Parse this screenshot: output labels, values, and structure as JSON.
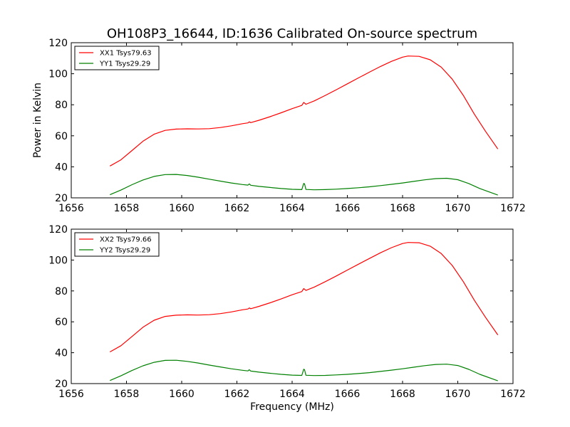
{
  "title": "OH108P3_16644, ID:1636 Calibrated On-source spectrum",
  "colors": {
    "xx": "#ff0000",
    "yy": "#008000",
    "axes": "#000000"
  },
  "chart_data": [
    {
      "type": "line",
      "ylabel": "Power in Kelvin",
      "xlabel": "",
      "xlim": [
        1656,
        1672
      ],
      "ylim": [
        20,
        120
      ],
      "xticks": [
        1656,
        1658,
        1660,
        1662,
        1664,
        1666,
        1668,
        1670,
        1672
      ],
      "yticks": [
        20,
        40,
        60,
        80,
        100,
        120
      ],
      "legend": "top-left",
      "grid": false,
      "series": [
        {
          "name": "XX1 Tsys79.63",
          "color": "#ff0000",
          "x": [
            1657.4,
            1657.8,
            1658.2,
            1658.6,
            1659.0,
            1659.4,
            1659.8,
            1660.2,
            1660.6,
            1661.0,
            1661.4,
            1661.8,
            1662.2,
            1662.4,
            1662.45,
            1662.5,
            1662.8,
            1663.2,
            1663.6,
            1664.0,
            1664.35,
            1664.42,
            1664.5,
            1664.8,
            1665.2,
            1665.6,
            1666.0,
            1666.4,
            1666.8,
            1667.2,
            1667.6,
            1668.0,
            1668.2,
            1668.6,
            1669.0,
            1669.4,
            1669.8,
            1670.2,
            1670.6,
            1671.0,
            1671.45
          ],
          "y": [
            40.5,
            44.5,
            50.5,
            56.5,
            61.0,
            63.5,
            64.3,
            64.5,
            64.4,
            64.6,
            65.3,
            66.4,
            67.8,
            68.3,
            69.0,
            68.5,
            70.0,
            72.3,
            74.8,
            77.5,
            79.6,
            81.5,
            80.3,
            82.5,
            86.0,
            89.7,
            93.5,
            97.3,
            101.0,
            104.7,
            108.0,
            110.7,
            111.4,
            111.2,
            109.0,
            104.2,
            96.5,
            86.0,
            74.0,
            63.0,
            51.5
          ]
        },
        {
          "name": "YY1 Tsys29.29",
          "color": "#008000",
          "x": [
            1657.4,
            1657.8,
            1658.2,
            1658.6,
            1659.0,
            1659.4,
            1659.8,
            1660.2,
            1660.6,
            1661.0,
            1661.4,
            1661.8,
            1662.2,
            1662.4,
            1662.45,
            1662.5,
            1662.8,
            1663.2,
            1663.6,
            1664.0,
            1664.35,
            1664.42,
            1664.45,
            1664.5,
            1664.8,
            1665.2,
            1665.6,
            1666.0,
            1666.4,
            1666.8,
            1667.2,
            1667.6,
            1668.0,
            1668.4,
            1668.8,
            1669.2,
            1669.6,
            1670.0,
            1670.4,
            1670.8,
            1671.45
          ],
          "y": [
            22.0,
            25.0,
            28.5,
            31.5,
            33.8,
            35.0,
            35.1,
            34.4,
            33.3,
            32.0,
            30.8,
            29.6,
            28.6,
            28.2,
            29.0,
            28.1,
            27.4,
            26.7,
            26.0,
            25.5,
            25.3,
            29.3,
            29.0,
            25.4,
            25.2,
            25.3,
            25.6,
            26.0,
            26.5,
            27.1,
            27.9,
            28.7,
            29.6,
            30.6,
            31.6,
            32.4,
            32.6,
            31.7,
            29.2,
            26.0,
            21.8
          ]
        }
      ]
    },
    {
      "type": "line",
      "ylabel": "",
      "xlabel": "Frequency (MHz)",
      "xlim": [
        1656,
        1672
      ],
      "ylim": [
        20,
        120
      ],
      "xticks": [
        1656,
        1658,
        1660,
        1662,
        1664,
        1666,
        1668,
        1670,
        1672
      ],
      "yticks": [
        20,
        40,
        60,
        80,
        100,
        120
      ],
      "legend": "top-left",
      "grid": false,
      "series": [
        {
          "name": "XX2 Tsys79.66",
          "color": "#ff0000",
          "x": [
            1657.4,
            1657.8,
            1658.2,
            1658.6,
            1659.0,
            1659.4,
            1659.8,
            1660.2,
            1660.6,
            1661.0,
            1661.4,
            1661.8,
            1662.2,
            1662.4,
            1662.45,
            1662.5,
            1662.8,
            1663.2,
            1663.6,
            1664.0,
            1664.35,
            1664.42,
            1664.5,
            1664.8,
            1665.2,
            1665.6,
            1666.0,
            1666.4,
            1666.8,
            1667.2,
            1667.6,
            1668.0,
            1668.2,
            1668.6,
            1669.0,
            1669.4,
            1669.8,
            1670.2,
            1670.6,
            1671.0,
            1671.45
          ],
          "y": [
            40.5,
            44.5,
            50.5,
            56.5,
            61.0,
            63.5,
            64.3,
            64.5,
            64.4,
            64.6,
            65.3,
            66.4,
            67.8,
            68.3,
            69.0,
            68.5,
            70.0,
            72.3,
            74.8,
            77.5,
            79.6,
            81.5,
            80.3,
            82.5,
            86.0,
            89.7,
            93.5,
            97.3,
            101.0,
            104.7,
            108.0,
            110.7,
            111.4,
            111.2,
            109.0,
            104.2,
            96.5,
            86.0,
            74.0,
            63.0,
            51.5
          ]
        },
        {
          "name": "YY2 Tsys29.29",
          "color": "#008000",
          "x": [
            1657.4,
            1657.8,
            1658.2,
            1658.6,
            1659.0,
            1659.4,
            1659.8,
            1660.2,
            1660.6,
            1661.0,
            1661.4,
            1661.8,
            1662.2,
            1662.4,
            1662.45,
            1662.5,
            1662.8,
            1663.2,
            1663.6,
            1664.0,
            1664.35,
            1664.42,
            1664.45,
            1664.5,
            1664.8,
            1665.2,
            1665.6,
            1666.0,
            1666.4,
            1666.8,
            1667.2,
            1667.6,
            1668.0,
            1668.4,
            1668.8,
            1669.2,
            1669.6,
            1670.0,
            1670.4,
            1670.8,
            1671.45
          ],
          "y": [
            22.0,
            25.0,
            28.5,
            31.5,
            33.8,
            35.0,
            35.1,
            34.4,
            33.3,
            32.0,
            30.8,
            29.6,
            28.6,
            28.2,
            29.0,
            28.1,
            27.4,
            26.7,
            26.0,
            25.5,
            25.3,
            29.3,
            29.0,
            25.4,
            25.2,
            25.3,
            25.6,
            26.0,
            26.5,
            27.1,
            27.9,
            28.7,
            29.6,
            30.6,
            31.6,
            32.4,
            32.6,
            31.7,
            29.2,
            26.0,
            21.8
          ]
        }
      ]
    }
  ]
}
